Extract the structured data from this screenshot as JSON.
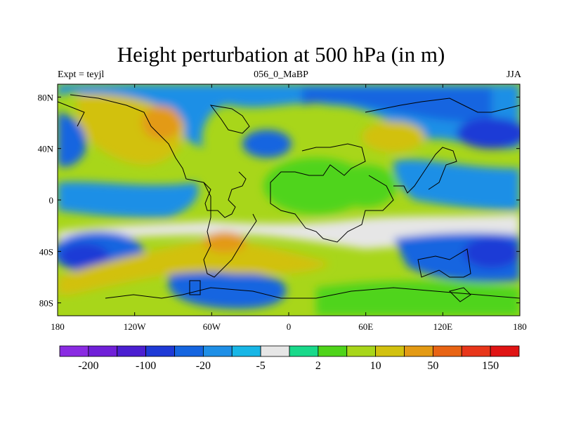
{
  "title": "Height perturbation at 500 hPa (in m)",
  "subtitle_left": "Expt = teyjl",
  "subtitle_center": "056_0_MaBP",
  "subtitle_right": "JJA",
  "map": {
    "lon_ticks": [
      {
        "lon": -180,
        "label": "180"
      },
      {
        "lon": -120,
        "label": "120W"
      },
      {
        "lon": -60,
        "label": "60W"
      },
      {
        "lon": 0,
        "label": "0"
      },
      {
        "lon": 60,
        "label": "60E"
      },
      {
        "lon": 120,
        "label": "120E"
      },
      {
        "lon": 180,
        "label": "180"
      }
    ],
    "lat_ticks": [
      {
        "lat": 80,
        "label": "80N"
      },
      {
        "lat": 40,
        "label": "40N"
      },
      {
        "lat": 0,
        "label": "0"
      },
      {
        "lat": -40,
        "label": "40S"
      },
      {
        "lat": -80,
        "label": "80S"
      }
    ],
    "lon_range": [
      -180,
      180
    ],
    "lat_range": [
      -90,
      90
    ]
  },
  "colorbar": {
    "colors": [
      "#8a2be2",
      "#7020d8",
      "#4b1fd1",
      "#1e3ad6",
      "#1565e0",
      "#1f8fe6",
      "#18b6e6",
      "#e6e6e6",
      "#19d98a",
      "#4fd41a",
      "#a8d61a",
      "#d2c10f",
      "#e39a14",
      "#e86414",
      "#e8361a",
      "#e01414"
    ],
    "labels": [
      {
        "boundary": 1,
        "text": "-200"
      },
      {
        "boundary": 3,
        "text": "-100"
      },
      {
        "boundary": 5,
        "text": "-20"
      },
      {
        "boundary": 7,
        "text": "-5"
      },
      {
        "boundary": 9,
        "text": "2"
      },
      {
        "boundary": 11,
        "text": "10"
      },
      {
        "boundary": 13,
        "text": "50"
      },
      {
        "boundary": 15,
        "text": "150"
      }
    ]
  }
}
